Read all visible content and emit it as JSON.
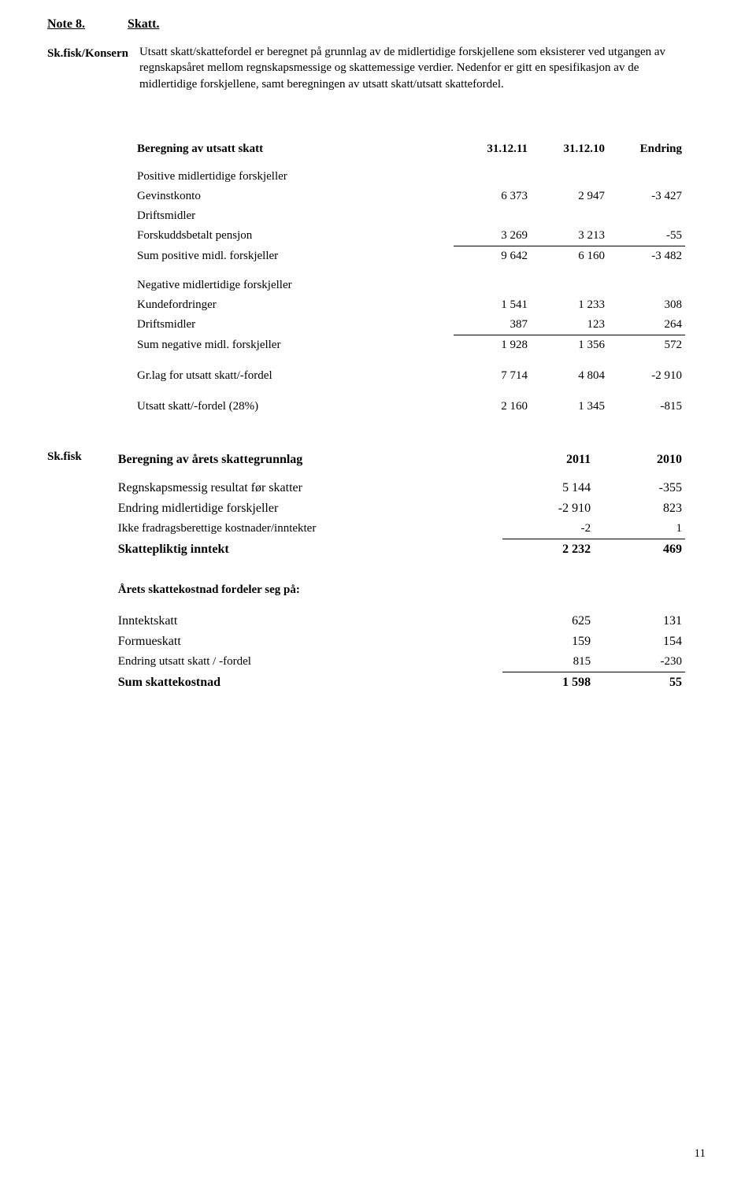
{
  "noteLabel": "Note 8.",
  "noteTitle": "Skatt.",
  "introLabel": "Sk.fisk/Konsern",
  "introText": "Utsatt skatt/skattefordel er beregnet på grunnlag av de midlertidige forskjellene som eksisterer ved utgangen av regnskapsåret mellom regnskapsmessige og skattemessige verdier. Nedenfor er gitt en spesifikasjon av de midlertidige forskjellene, samt beregningen av utsatt skatt/utsatt skattefordel.",
  "taxTable": {
    "header": {
      "c0": "Beregning av utsatt skatt",
      "c1": "31.12.11",
      "c2": "31.12.10",
      "c3": "Endring"
    },
    "posTitle": "Positive midlertidige forskjeller",
    "rows1": [
      {
        "label": "Gevinstkonto",
        "v1": "6 373",
        "v2": "2 947",
        "v3": "-3 427",
        "indent": true
      },
      {
        "label": "Driftsmidler",
        "v1": "",
        "v2": "",
        "v3": "",
        "indent": true
      },
      {
        "label": "Forskuddsbetalt pensjon",
        "v1": "3 269",
        "v2": "3 213",
        "v3": "-55",
        "indent": true,
        "underline": true
      }
    ],
    "sumPos": {
      "label": "Sum positive midl. forskjeller",
      "v1": "9 642",
      "v2": "6 160",
      "v3": "-3 482"
    },
    "negTitle": "Negative midlertidige forskjeller",
    "rows2": [
      {
        "label": "Kundefordringer",
        "v1": "1 541",
        "v2": "1 233",
        "v3": "308",
        "indent": true
      },
      {
        "label": "Driftsmidler",
        "v1": "387",
        "v2": "123",
        "v3": "264",
        "indent": true,
        "underline": true
      }
    ],
    "sumNeg": {
      "label": "Sum negative midl. forskjeller",
      "v1": "1 928",
      "v2": "1 356",
      "v3": "572"
    },
    "grlag": {
      "label": "Gr.lag for utsatt skatt/-fordel",
      "v1": "7 714",
      "v2": "4 804",
      "v3": "-2 910"
    },
    "utsatt": {
      "label": "Utsatt skatt/-fordel (28%)",
      "v1": "2 160",
      "v2": "1 345",
      "v3": "-815"
    }
  },
  "lowerLabel": "Sk.fisk",
  "grunnTable": {
    "header": {
      "c0": "Beregning av årets skattegrunnlag",
      "c1": "2011",
      "c2": "2010"
    },
    "rows1": [
      {
        "label": "Regnskapsmessig resultat før skatter",
        "v1": "5 144",
        "v2": "-355",
        "big": true
      },
      {
        "label": "Endring midlertidige forskjeller",
        "v1": "-2 910",
        "v2": "823",
        "big": true
      },
      {
        "label": "Ikke fradragsberettige kostnader/inntekter",
        "v1": "-2",
        "v2": "1",
        "underline": true
      }
    ],
    "skatte": {
      "label": "Skattepliktig inntekt",
      "v1": "2 232",
      "v2": "469"
    },
    "fordeler": "Årets skattekostnad fordeler seg på:",
    "rows2": [
      {
        "label": "Inntektskatt",
        "v1": "625",
        "v2": "131",
        "big": true
      },
      {
        "label": "Formueskatt",
        "v1": "159",
        "v2": "154",
        "big": true
      },
      {
        "label": "Endring utsatt skatt / -fordel",
        "v1": "815",
        "v2": "-230",
        "underline": true
      }
    ],
    "sumSkatt": {
      "label": "Sum skattekostnad",
      "v1": "1 598",
      "v2": "55"
    }
  },
  "pageNum": "11"
}
